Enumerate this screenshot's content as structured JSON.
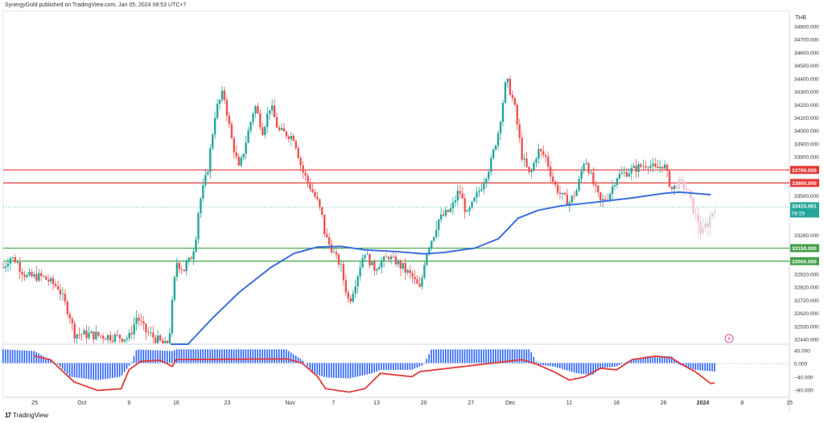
{
  "header": {
    "published_text": "SynergyGold published on TradingView.com, Jan 05, 2024 08:53 UTC+7"
  },
  "footer": {
    "brand_logo": "17",
    "brand_label": "TradingView"
  },
  "chart_data": [
    {
      "type": "candlestick",
      "currency_label": "THB",
      "y_axis_ticks": [
        34800,
        34700,
        34600,
        34500,
        34400,
        34300,
        34200,
        34100,
        34000,
        33900,
        33800,
        33700,
        33600,
        33500,
        33400,
        33300,
        33260,
        33150,
        33000,
        32920,
        32820,
        32720,
        32620,
        32530,
        32440
      ],
      "y_tick_labels": [
        "34800.000",
        "34700.000",
        "34600.000",
        "34500.000",
        "34400.000",
        "34300.000",
        "34200.000",
        "34100.000",
        "34000.000",
        "33900.000",
        "33800.000",
        "",
        "",
        "33500.000",
        "",
        "",
        "33260.000",
        "",
        "",
        "32920.000",
        "32820.000",
        "32720.000",
        "32620.000",
        "32530.000",
        "32440.000"
      ],
      "ylim": [
        32440,
        34850
      ],
      "horizontal_levels": [
        {
          "value": 33700,
          "label": "33700.000",
          "color": "#e53935"
        },
        {
          "value": 33600,
          "label": "33600.000",
          "color": "#e53935"
        },
        {
          "value": 33150,
          "label": "33150.000",
          "color": "#43a047"
        },
        {
          "value": 33000,
          "label": "33000.000",
          "color": "#43a047"
        }
      ],
      "last_price": {
        "value": 33415.061,
        "label": "33415.061",
        "countdown": "06:55",
        "color": "#26a69a"
      },
      "moving_average": {
        "color": "#3b6fe0",
        "points": [
          [
            0.213,
            32200
          ],
          [
            0.235,
            32380
          ],
          [
            0.265,
            32580
          ],
          [
            0.3,
            32780
          ],
          [
            0.34,
            32960
          ],
          [
            0.37,
            33090
          ],
          [
            0.4,
            33160
          ],
          [
            0.43,
            33165
          ],
          [
            0.46,
            33130
          ],
          [
            0.5,
            33110
          ],
          [
            0.535,
            33085
          ],
          [
            0.56,
            33100
          ],
          [
            0.6,
            33150
          ],
          [
            0.63,
            33230
          ],
          [
            0.655,
            33330
          ],
          [
            0.68,
            33390
          ],
          [
            0.71,
            33425
          ],
          [
            0.75,
            33450
          ],
          [
            0.8,
            33485
          ],
          [
            0.84,
            33520
          ],
          [
            0.86,
            33530
          ],
          [
            0.9,
            33510
          ]
        ]
      },
      "candles_trend": [
        [
          0.0,
          32960
        ],
        [
          0.01,
          33050
        ],
        [
          0.03,
          32900
        ],
        [
          0.05,
          32900
        ],
        [
          0.07,
          32820
        ],
        [
          0.085,
          32600
        ],
        [
          0.09,
          32480
        ],
        [
          0.16,
          32450
        ],
        [
          0.17,
          32600
        ],
        [
          0.18,
          32500
        ],
        [
          0.21,
          32380
        ],
        [
          0.215,
          32700
        ],
        [
          0.22,
          33000
        ],
        [
          0.23,
          32950
        ],
        [
          0.24,
          33050
        ],
        [
          0.25,
          33450
        ],
        [
          0.26,
          33700
        ],
        [
          0.27,
          34150
        ],
        [
          0.28,
          34300
        ],
        [
          0.29,
          33950
        ],
        [
          0.3,
          33700
        ],
        [
          0.31,
          33950
        ],
        [
          0.32,
          34200
        ],
        [
          0.33,
          34000
        ],
        [
          0.34,
          34200
        ],
        [
          0.35,
          34000
        ],
        [
          0.37,
          33950
        ],
        [
          0.38,
          33700
        ],
        [
          0.4,
          33450
        ],
        [
          0.41,
          33250
        ],
        [
          0.42,
          33100
        ],
        [
          0.43,
          32950
        ],
        [
          0.44,
          32700
        ],
        [
          0.45,
          32900
        ],
        [
          0.46,
          33100
        ],
        [
          0.47,
          32950
        ],
        [
          0.49,
          33050
        ],
        [
          0.51,
          32950
        ],
        [
          0.52,
          32900
        ],
        [
          0.53,
          32800
        ],
        [
          0.54,
          33150
        ],
        [
          0.55,
          33300
        ],
        [
          0.57,
          33400
        ],
        [
          0.58,
          33550
        ],
        [
          0.59,
          33350
        ],
        [
          0.61,
          33600
        ],
        [
          0.62,
          33750
        ],
        [
          0.63,
          34000
        ],
        [
          0.64,
          34400
        ],
        [
          0.65,
          34200
        ],
        [
          0.66,
          33800
        ],
        [
          0.67,
          33650
        ],
        [
          0.68,
          33850
        ],
        [
          0.69,
          33800
        ],
        [
          0.7,
          33600
        ],
        [
          0.71,
          33500
        ],
        [
          0.72,
          33450
        ],
        [
          0.73,
          33550
        ],
        [
          0.74,
          33800
        ],
        [
          0.75,
          33600
        ],
        [
          0.76,
          33450
        ],
        [
          0.77,
          33500
        ],
        [
          0.78,
          33650
        ],
        [
          0.8,
          33700
        ],
        [
          0.82,
          33750
        ],
        [
          0.83,
          33700
        ],
        [
          0.84,
          33750
        ],
        [
          0.85,
          33550
        ],
        [
          0.86,
          33600
        ],
        [
          0.87,
          33550
        ],
        [
          0.88,
          33350
        ],
        [
          0.89,
          33250
        ],
        [
          0.9,
          33350
        ],
        [
          0.905,
          33420
        ]
      ],
      "x_ticks": [
        "25",
        "Oct",
        "9",
        "16",
        "23",
        "Nov",
        "7",
        "13",
        "20",
        "27",
        "Dec",
        "11",
        "18",
        "26",
        "2024",
        "8",
        "15"
      ],
      "oscillator": {
        "ticks": [
          40,
          0,
          -40,
          -80
        ],
        "tick_labels": [
          "40.000",
          "0.000",
          "−40.000",
          "−80.000"
        ],
        "ylim": [
          -100,
          55
        ],
        "signal_color": "#e53935",
        "hist_color": "#2962ff"
      }
    }
  ]
}
